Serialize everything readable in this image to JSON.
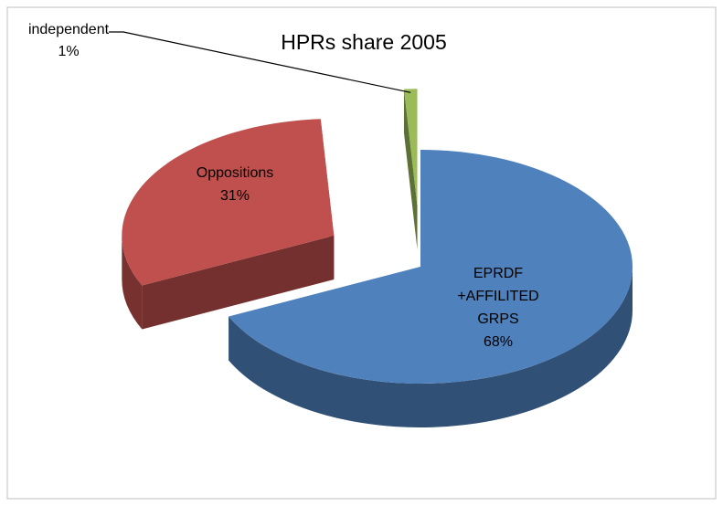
{
  "chart_data": {
    "type": "pie3d",
    "title": "HPRs share 2005",
    "categories": [
      "EPRDF +AFFILITED GRPS",
      "Oppositions",
      "independent"
    ],
    "values": [
      68,
      31,
      1
    ],
    "value_labels": [
      "68%",
      "31%",
      "1%"
    ],
    "colors": [
      "#4f81bd",
      "#c0504d",
      "#9bbb59"
    ]
  }
}
